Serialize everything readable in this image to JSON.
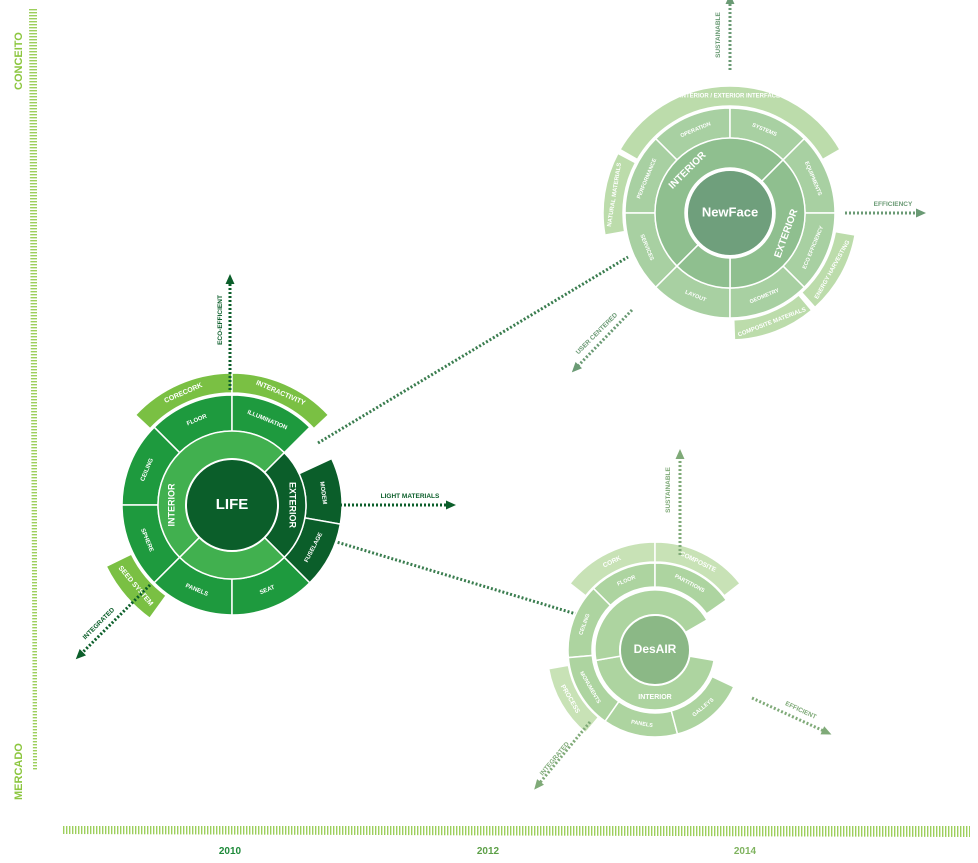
{
  "axes": {
    "y_top_label": "CONCEITO",
    "y_bottom_label": "MERCADO",
    "x_years": [
      "2010",
      "2012",
      "2014"
    ]
  },
  "colors": {
    "life_dark": "#0b5e2a",
    "life_mid": "#1e9a3e",
    "life_light": "#41b04f",
    "life_outer": "#7ac043",
    "newface_center": "#6f9f7c",
    "newface_mid": "#8fbf8f",
    "newface_inner": "#a8d0a2",
    "newface_outer": "#bcdcab",
    "desair_center": "#8bb886",
    "desair_ring": "#add4a0",
    "desair_outer": "#c8e2b6",
    "axis": "#8cc63f"
  },
  "life": {
    "center": "LIFE",
    "interior_label": "INTERIOR",
    "exterior_label": "EXTERIOR",
    "segments": [
      "FLOOR",
      "ILLUMINATION",
      "CEILING",
      "SPHERE",
      "PANELS",
      "SEAT",
      "MODEM",
      "FUSELAGE"
    ],
    "outer": [
      "CORECORK",
      "INTERACTIVITY",
      "SEED SYSTEM"
    ],
    "arrows": [
      "ECO-EFFICIENT",
      "LIGHT MATERIALS",
      "INTEGRATED"
    ]
  },
  "newface": {
    "center": "NewFace",
    "interior_label": "INTERIOR",
    "exterior_label": "EXTERIOR",
    "segments": [
      "OPERATION",
      "SYSTEMS",
      "PERFORMANCE",
      "EQUIPMENTS",
      "SERVICES",
      "ECO EFFICIENCY",
      "LAYOUT",
      "GEOMETRY"
    ],
    "outer": [
      "INTERIOR / EXTERIOR INTERFACE",
      "NATURAL MATERIALS",
      "ENERGY HARVESTING",
      "COMPOSITE MATERIALS"
    ],
    "arrows": [
      "SUSTAINABLE",
      "EFFICIENCY",
      "USER CENTERED"
    ]
  },
  "desair": {
    "center": "DesAIR",
    "interior_label": "INTERIOR",
    "segments": [
      "FLOOR",
      "PARTITIONS",
      "CEILING",
      "MONUMENTS",
      "PANELS",
      "GALLEYS"
    ],
    "outer": [
      "CORK",
      "COMPOSITE",
      "PROCESS"
    ],
    "arrows": [
      "SUSTAINABLE",
      "EFFICIENT",
      "INTEGRATED"
    ]
  }
}
